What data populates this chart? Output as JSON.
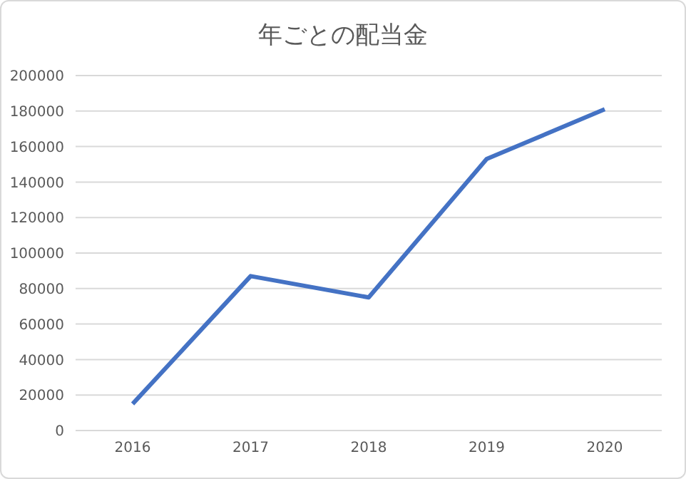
{
  "chart_data": {
    "type": "line",
    "title": "年ごとの配当金",
    "categories": [
      "2016",
      "2017",
      "2018",
      "2019",
      "2020"
    ],
    "series": [
      {
        "color": "#4472c4",
        "values": [
          15000,
          87000,
          75000,
          153000,
          181000
        ]
      }
    ],
    "ylim": [
      0,
      200000
    ],
    "yticks": [
      0,
      20000,
      40000,
      60000,
      80000,
      100000,
      120000,
      140000,
      160000,
      180000,
      200000
    ],
    "grid": "y",
    "legend": false,
    "marker": "none",
    "line_style": "solid"
  }
}
